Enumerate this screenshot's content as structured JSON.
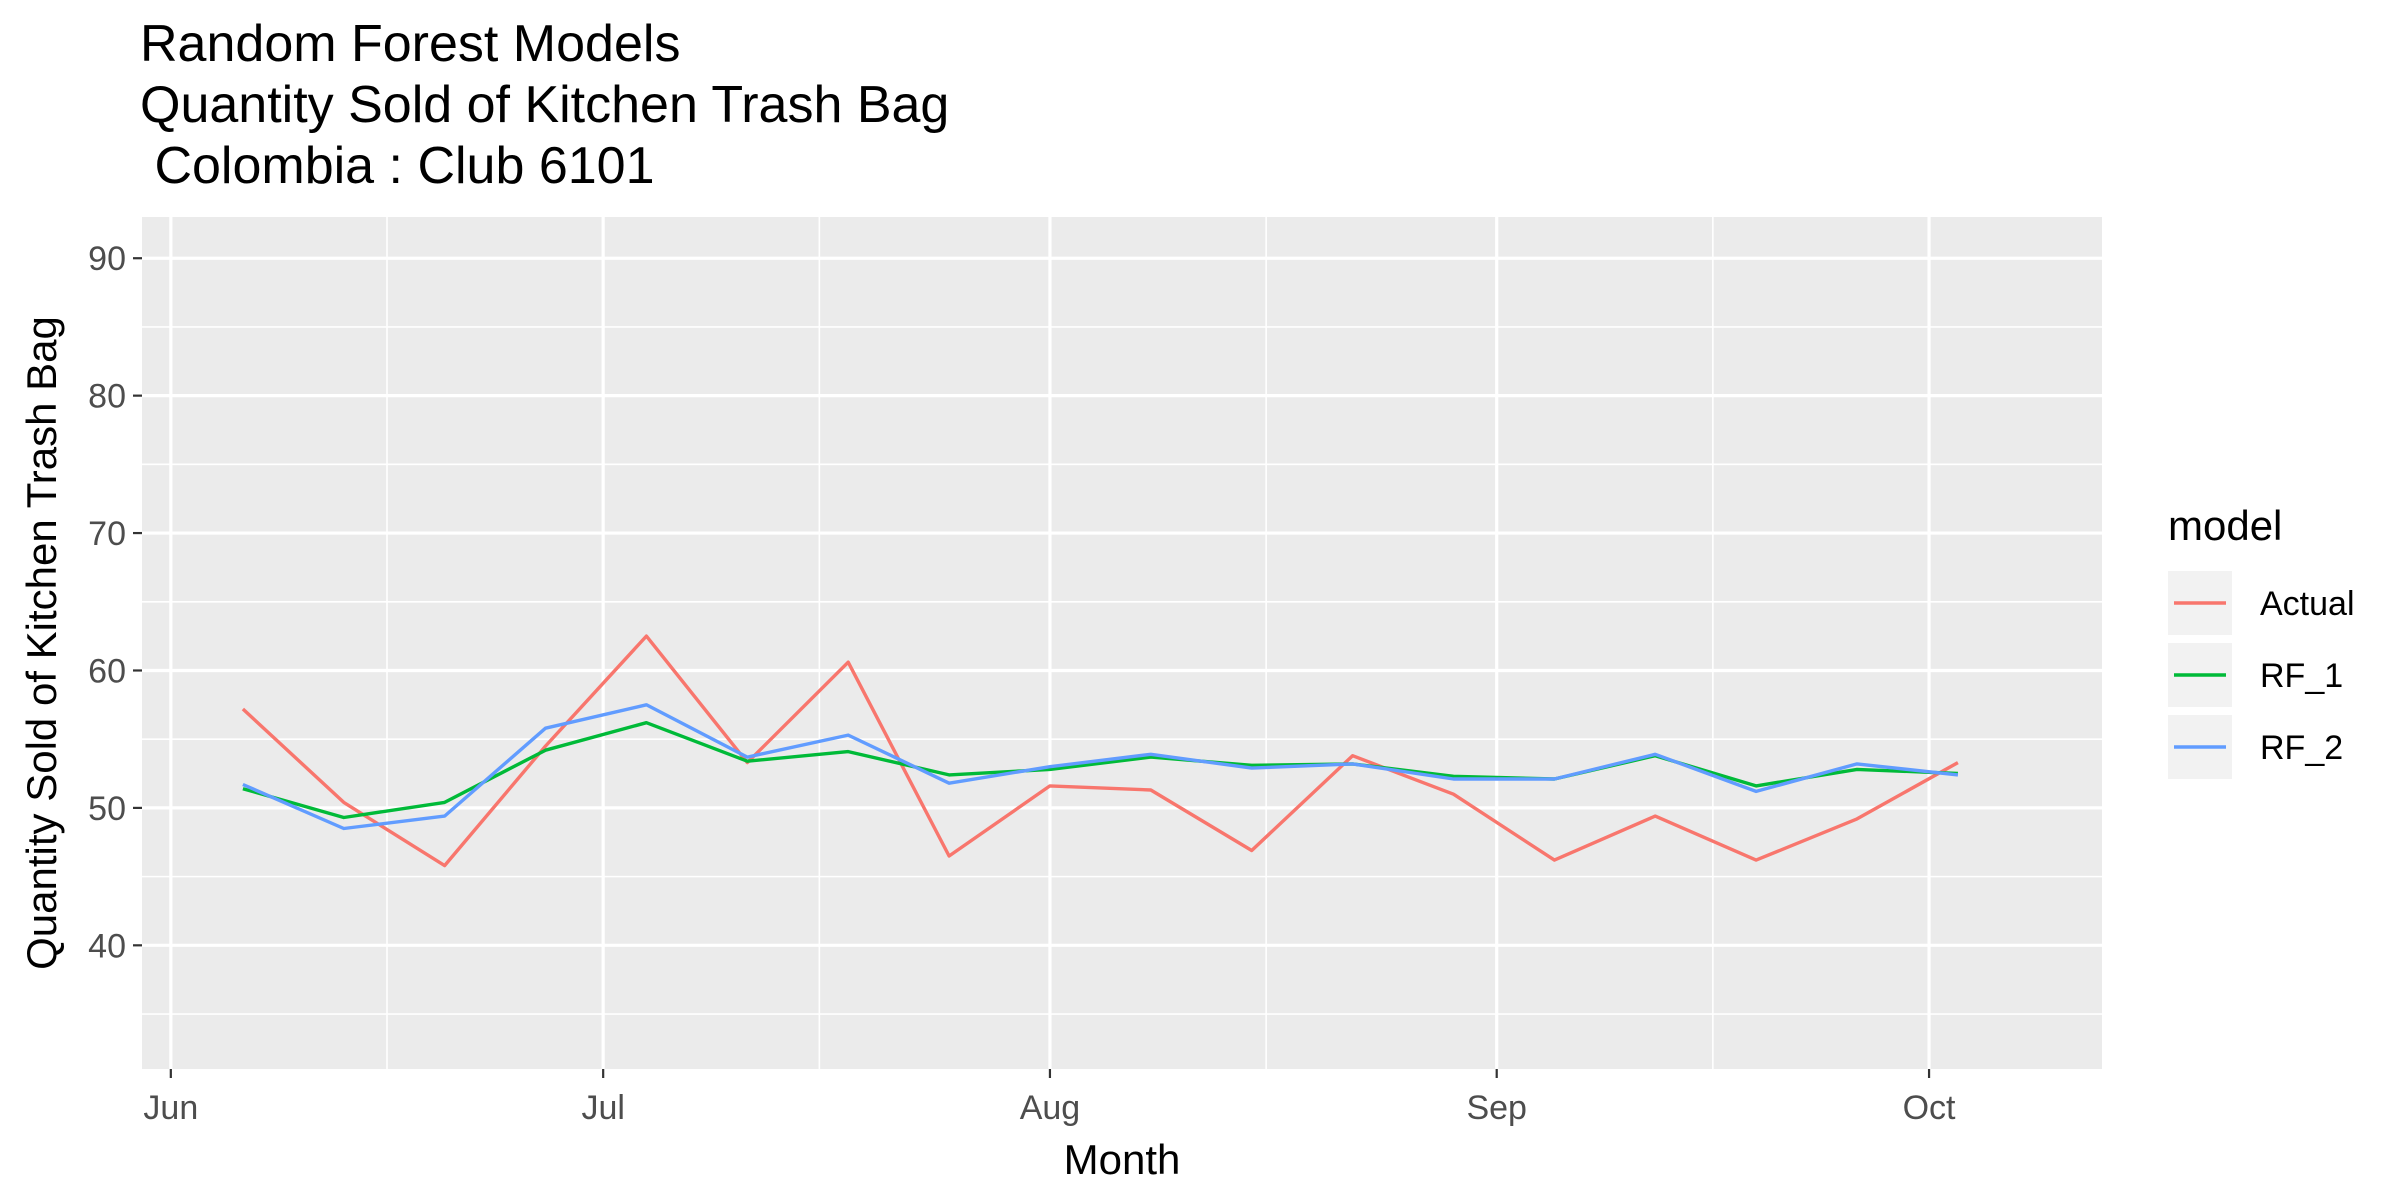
{
  "chart_data": {
    "type": "line",
    "title_lines": [
      "Random Forest Models",
      "Quantity Sold of Kitchen Trash Bag",
      " Colombia : Club 6101"
    ],
    "xlabel": "Month",
    "ylabel": "Quantity Sold of Kitchen Trash Bag",
    "x_axis": {
      "type": "date",
      "range": [
        "2019-05-30",
        "2019-10-13"
      ],
      "ticks": [
        {
          "date": "2019-06-01",
          "label": "Jun"
        },
        {
          "date": "2019-07-01",
          "label": "Jul"
        },
        {
          "date": "2019-08-01",
          "label": "Aug"
        },
        {
          "date": "2019-09-01",
          "label": "Sep"
        },
        {
          "date": "2019-10-01",
          "label": "Oct"
        }
      ],
      "minor_ticks": [
        "2019-06-16",
        "2019-07-16",
        "2019-08-16",
        "2019-09-16"
      ]
    },
    "y_axis": {
      "range": [
        31,
        93
      ],
      "ticks": [
        40,
        50,
        60,
        70,
        80,
        90
      ],
      "labels": [
        "40",
        "50",
        "60",
        "70",
        "80",
        "90"
      ],
      "minor_ticks": [
        35,
        45,
        55,
        65,
        75,
        85
      ]
    },
    "grid": true,
    "x": [
      "2019-06-06",
      "2019-06-13",
      "2019-06-20",
      "2019-06-27",
      "2019-07-04",
      "2019-07-11",
      "2019-07-18",
      "2019-07-25",
      "2019-08-01",
      "2019-08-08",
      "2019-08-15",
      "2019-08-22",
      "2019-08-29",
      "2019-09-05",
      "2019-09-12",
      "2019-09-19",
      "2019-09-26",
      "2019-10-03"
    ],
    "series": [
      {
        "name": "Actual",
        "color": "#F8766D",
        "values": [
          57.2,
          50.4,
          45.8,
          54.5,
          62.5,
          53.3,
          60.6,
          46.5,
          51.6,
          51.3,
          46.9,
          53.8,
          51.0,
          46.2,
          49.4,
          46.2,
          49.2,
          53.3
        ]
      },
      {
        "name": "RF_1",
        "color": "#00BA38",
        "values": [
          51.4,
          49.3,
          50.4,
          54.2,
          56.2,
          53.4,
          54.1,
          52.4,
          52.8,
          53.7,
          53.1,
          53.2,
          52.3,
          52.1,
          53.8,
          51.6,
          52.8,
          52.5
        ]
      },
      {
        "name": "RF_2",
        "color": "#619CFF",
        "values": [
          51.7,
          48.5,
          49.4,
          55.8,
          57.5,
          53.7,
          55.3,
          51.8,
          53.0,
          53.9,
          52.9,
          53.2,
          52.1,
          52.1,
          53.9,
          51.2,
          53.2,
          52.4
        ]
      }
    ],
    "legend": {
      "title": "model",
      "placement": "right"
    }
  }
}
